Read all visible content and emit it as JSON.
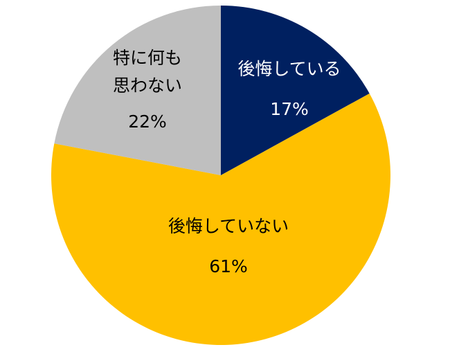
{
  "chart_data": {
    "type": "pie",
    "title": "",
    "start": "top",
    "direction": "clockwise",
    "slices": [
      {
        "label": [
          "後悔している"
        ],
        "value": 17,
        "value_label": "17%",
        "color": "#002060",
        "text_color": "#FFFFFF"
      },
      {
        "label": [
          "後悔していない"
        ],
        "value": 61,
        "value_label": "61%",
        "color": "#FFC000",
        "text_color": "#000000"
      },
      {
        "label": [
          "特に何も",
          "思わない"
        ],
        "value": 22,
        "value_label": "22%",
        "color": "#BFBFBF",
        "text_color": "#000000"
      }
    ]
  }
}
